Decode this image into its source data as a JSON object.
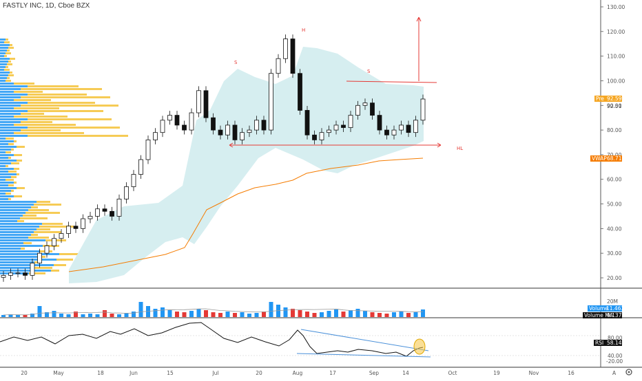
{
  "title": "FASTLY INC, 1D, Cboe BZX",
  "chart_data": [
    {
      "type": "candlestick",
      "title": "FASTLY INC, 1D, Cboe BZX",
      "x": [
        "Apr 17",
        "Apr 20",
        "Apr 24",
        "May 1",
        "May 6",
        "May 11",
        "May 13",
        "May 15",
        "May 18",
        "May 20",
        "May 22",
        "May 27",
        "May 29",
        "Jun 1",
        "Jun 3",
        "Jun 5",
        "Jun 8",
        "Jun 10",
        "Jun 12",
        "Jun 15",
        "Jun 17",
        "Jun 19",
        "Jun 22",
        "Jun 24",
        "Jun 26",
        "Jun 29",
        "Jul 1",
        "Jul 6",
        "Jul 8",
        "Jul 10",
        "Jul 13",
        "Jul 15",
        "Jul 17",
        "Jul 20",
        "Jul 22",
        "Jul 24",
        "Jul 27",
        "Jul 29",
        "Jul 31",
        "Aug 3",
        "Aug 5",
        "Aug 7",
        "Aug 10",
        "Aug 12",
        "Aug 14",
        "Aug 17",
        "Aug 19",
        "Aug 21",
        "Aug 24",
        "Aug 26",
        "Aug 28",
        "Aug 31",
        "Sep 2",
        "Sep 4",
        "Sep 8",
        "Sep 10",
        "Sep 14",
        "Sep 16",
        "Sep 18"
      ],
      "close": [
        21,
        22,
        22,
        21,
        26,
        30,
        33,
        36,
        38,
        41,
        40,
        44,
        45,
        48,
        47,
        45,
        52,
        57,
        62,
        68,
        76,
        79,
        84,
        86,
        82,
        80,
        87,
        96,
        85,
        80,
        78,
        82,
        76,
        79,
        80,
        84,
        80,
        103,
        109,
        117,
        103,
        88,
        78,
        76,
        79,
        80,
        82,
        81,
        86,
        90,
        91,
        86,
        80,
        78,
        80,
        82,
        79,
        84,
        92.59
      ],
      "ylim": [
        15,
        133
      ],
      "y_ticks": [
        "20.00",
        "30.00",
        "40.00",
        "50.00",
        "60.00",
        "70.00",
        "80.00",
        "90.00",
        "100.00",
        "110.00",
        "120.00",
        "130.00"
      ],
      "x_ticks": [
        "20",
        "May",
        "18",
        "Jun",
        "15",
        "Jul",
        "20",
        "Aug",
        "17",
        "Sep",
        "14",
        "Oct",
        "19",
        "Nov",
        "16"
      ],
      "price_labels": [
        {
          "name": "Pre",
          "value": "92.59",
          "color": "#f5a623"
        },
        {
          "name": "last",
          "value": "92.51"
        },
        {
          "name": "VWAP",
          "value": "68.71",
          "color": "#f57c00"
        }
      ],
      "annotations": [
        "S",
        "H",
        "S",
        "HL"
      ],
      "grid": false
    },
    {
      "type": "bar",
      "title": "Volume",
      "y_ticks": [
        "20M"
      ],
      "volume_label": "Volume",
      "volume_value": "11.463M",
      "ma_label": "Volume MA",
      "ma_value": "9.137M",
      "colors": {
        "up": "#2196f3",
        "down": "#e53935"
      }
    },
    {
      "type": "line",
      "title": "RSI",
      "rsi_value": "58.14",
      "y_ticks": [
        "80.00",
        "40.00",
        "-20.00"
      ],
      "ylim": [
        20,
        90
      ]
    }
  ],
  "colors": {
    "up": "#2196f3",
    "down": "#e53935",
    "vwap": "#f57c00",
    "pre": "#f5a623",
    "band": "#d6eef0",
    "profile_a": "#2196f3",
    "profile_b": "#f5c542"
  },
  "footer": {
    "log_label": "A",
    "settings_icon": "gear-icon"
  }
}
